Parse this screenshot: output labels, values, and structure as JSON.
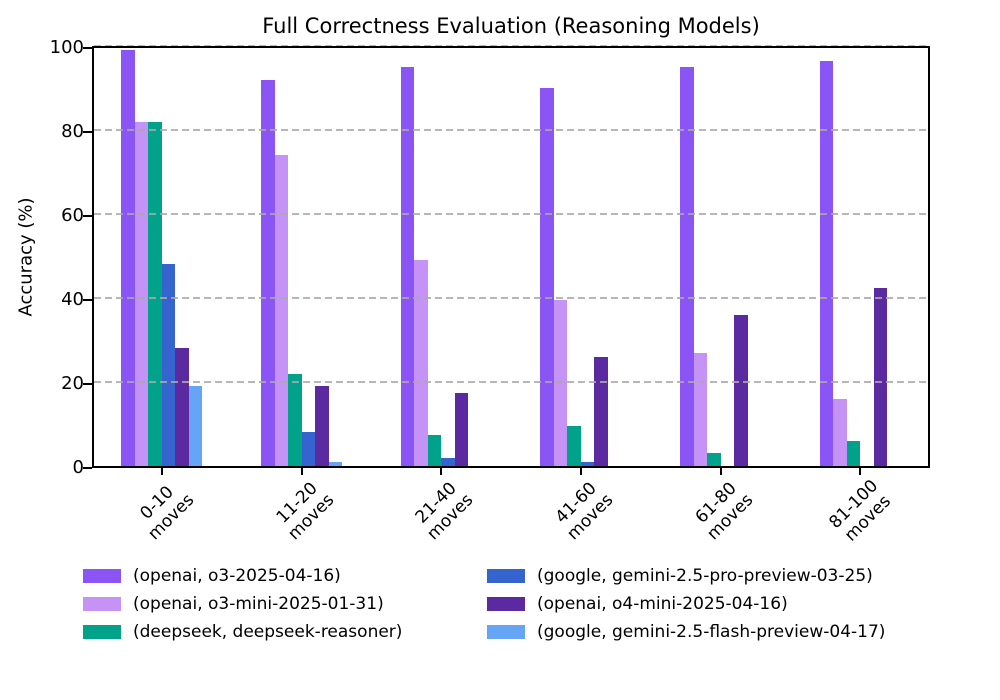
{
  "chart_data": {
    "type": "bar",
    "title": "Full Correctness Evaluation (Reasoning Models)",
    "xlabel": "",
    "ylabel": "Accuracy (%)",
    "ylim": [
      0,
      100
    ],
    "yticks": [
      0,
      20,
      40,
      60,
      80,
      100
    ],
    "grid": {
      "horizontal": true,
      "style": "dashed",
      "color": "#aaaaaa",
      "drawn_above_bars": true
    },
    "legend": {
      "position": "below-chart",
      "columns": 2,
      "fill_order": "column-major",
      "frame": false
    },
    "categories": [
      "0-10",
      "11-20",
      "21-40",
      "41-60",
      "61-80",
      "81-100"
    ],
    "category_line2": "moves",
    "series": [
      {
        "name": "(openai, o3-2025-04-16)",
        "color": "#8b55f5",
        "values": [
          99,
          92,
          95,
          90,
          95,
          96.5
        ]
      },
      {
        "name": "(openai, o3-mini-2025-01-31)",
        "color": "#c493f5",
        "values": [
          82,
          74,
          49,
          39.5,
          27,
          16
        ]
      },
      {
        "name": "(deepseek, deepseek-reasoner)",
        "color": "#00a38a",
        "values": [
          82,
          22,
          7.5,
          9.5,
          3,
          6
        ]
      },
      {
        "name": "(google, gemini-2.5-pro-preview-03-25)",
        "color": "#3564cf",
        "values": [
          48,
          8,
          2,
          1,
          0,
          0
        ]
      },
      {
        "name": "(openai, o4-mini-2025-04-16)",
        "color": "#5b2aa0",
        "values": [
          28,
          19,
          17.5,
          26,
          36,
          42.5
        ]
      },
      {
        "name": "(google, gemini-2.5-flash-preview-04-17)",
        "color": "#66a5f5",
        "values": [
          19,
          1,
          0,
          0,
          0,
          0
        ]
      }
    ]
  }
}
